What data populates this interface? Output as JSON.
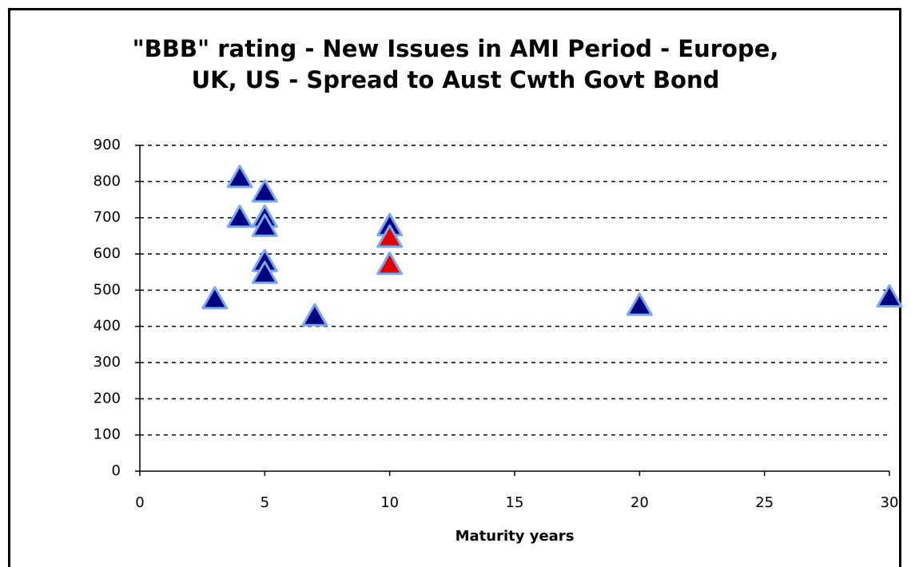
{
  "chart_data": {
    "type": "scatter",
    "title": "\"BBB\" rating - New Issues in AMI Period - Europe, UK, US - Spread to Aust Cwth Govt Bond",
    "xlabel": "Maturity years",
    "series": [
      {
        "color": "#000080",
        "x": [
          3,
          4,
          4,
          5,
          5,
          5,
          5,
          5,
          7,
          10,
          20,
          30
        ],
        "values": [
          475,
          810,
          700,
          770,
          700,
          675,
          578,
          545,
          428,
          677,
          457,
          480
        ]
      },
      {
        "color": "#e00000",
        "x": [
          10,
          10
        ],
        "values": [
          645,
          570
        ]
      }
    ],
    "xlim": [
      0,
      30
    ],
    "xticks": [
      0,
      5,
      10,
      15,
      20,
      25,
      30
    ],
    "ylim": [
      0,
      900
    ],
    "yticks": [
      0,
      100,
      200,
      300,
      400,
      500,
      600,
      700,
      800,
      900
    ],
    "grid": true
  }
}
